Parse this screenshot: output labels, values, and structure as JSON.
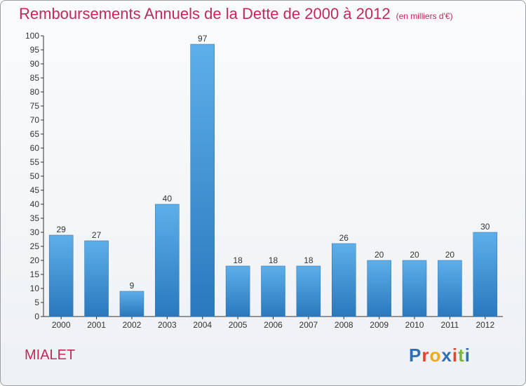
{
  "title": "Remboursements Annuels de la Dette de 2000 à 2012",
  "subtitle": "(en milliers d'€)",
  "commune": "MIALET",
  "logo": {
    "letters": [
      "P",
      "r",
      "o",
      "x",
      "i",
      "t",
      "i"
    ],
    "colors": [
      "#2f6fb5",
      "#e8412c",
      "#f2a818",
      "#2f6fb5",
      "#e8412c",
      "#7bb83a",
      "#2f6fb5"
    ]
  },
  "chart_data": {
    "type": "bar",
    "title": "Remboursements Annuels de la Dette de 2000 à 2012",
    "subtitle": "(en milliers d'€)",
    "categories": [
      "2000",
      "2001",
      "2002",
      "2003",
      "2004",
      "2005",
      "2006",
      "2007",
      "2008",
      "2009",
      "2010",
      "2011",
      "2012"
    ],
    "values": [
      29,
      27,
      9,
      40,
      97,
      18,
      18,
      18,
      26,
      20,
      20,
      20,
      30
    ],
    "ylim": [
      0,
      100
    ],
    "ytick_step": 5,
    "grid": false,
    "data_labels": true,
    "bar_color": "#3d8fd6"
  }
}
